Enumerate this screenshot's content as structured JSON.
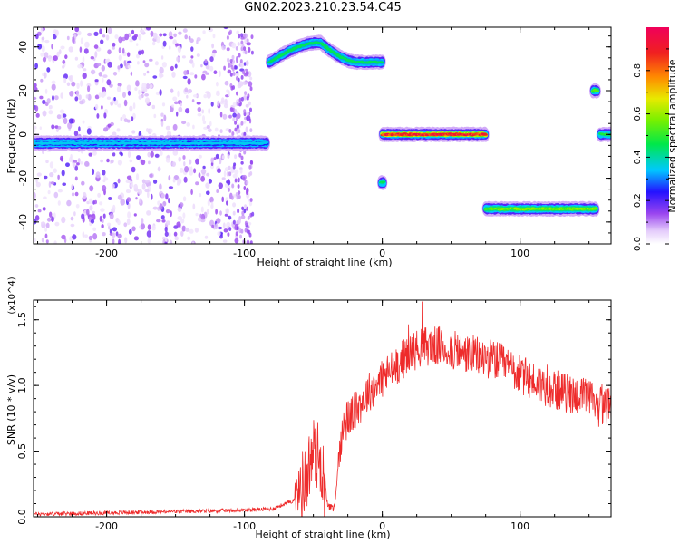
{
  "title": "GN02.2023.210.23.54.C45",
  "colors": {
    "snr_line": "#ee2b2b",
    "axis": "#000000"
  },
  "chart_data": [
    {
      "type": "heatmap",
      "xlabel": "Height of straight line (km)",
      "ylabel": "Frequency (Hz)",
      "xlim": [
        -253,
        166
      ],
      "ylim": [
        -50,
        49
      ],
      "x_ticks": [
        -200,
        -100,
        0,
        100
      ],
      "y_ticks": [
        -40,
        -20,
        0,
        20,
        40
      ],
      "colorbar": {
        "label": "Normalized spectral amplitude",
        "range": [
          0.0,
          1.0
        ],
        "ticks": [
          0.0,
          0.2,
          0.4,
          0.6,
          0.8
        ],
        "colormap": "white-purple-blue-cyan-green-yellow-red-magenta"
      },
      "tracks": [
        {
          "x_start": -253,
          "x_end": -84,
          "freq": -4,
          "amplitude": 0.35
        },
        {
          "x_start": -82,
          "x_end": 0,
          "freq": 33,
          "freq_peak": 42,
          "peak_x": -45,
          "amplitude": 0.45
        },
        {
          "x_start": -1,
          "x_end": 1,
          "freq": -22,
          "amplitude": 0.5
        },
        {
          "x_start": 0,
          "x_end": 75,
          "freq": 0,
          "amplitude": 0.95
        },
        {
          "x_start": 75,
          "x_end": 155,
          "freq": -34,
          "amplitude": 0.6
        },
        {
          "x_start": 153,
          "x_end": 156,
          "freq": 20,
          "amplitude": 0.6
        },
        {
          "x_start": 158,
          "x_end": 166,
          "freq": 0,
          "amplitude": 0.5
        }
      ]
    },
    {
      "type": "line",
      "xlabel": "Height of straight line (km)",
      "ylabel": "SNR (10 * v/v)",
      "y_multiplier": "(x10^4)",
      "xlim": [
        -253,
        166
      ],
      "ylim": [
        0,
        1.65
      ],
      "x_ticks": [
        -200,
        -100,
        0,
        100
      ],
      "y_ticks": [
        0.0,
        0.5,
        1.0,
        1.5
      ],
      "series": [
        {
          "x": [
            -253,
            -200,
            -150,
            -100,
            -80,
            -65,
            -55,
            -50,
            -45,
            -40,
            -35,
            -30,
            -25,
            -20,
            -10,
            0,
            10,
            20,
            30,
            40,
            50,
            60,
            70,
            80,
            90,
            100,
            110,
            120,
            130,
            140,
            150,
            160,
            166
          ],
          "values": [
            0.02,
            0.03,
            0.04,
            0.05,
            0.06,
            0.12,
            0.3,
            0.5,
            0.45,
            0.1,
            0.05,
            0.6,
            0.75,
            0.8,
            0.95,
            1.05,
            1.15,
            1.25,
            1.3,
            1.3,
            1.27,
            1.24,
            1.22,
            1.2,
            1.15,
            1.08,
            1.03,
            0.99,
            0.95,
            0.93,
            0.9,
            0.85,
            0.82
          ]
        }
      ]
    }
  ]
}
